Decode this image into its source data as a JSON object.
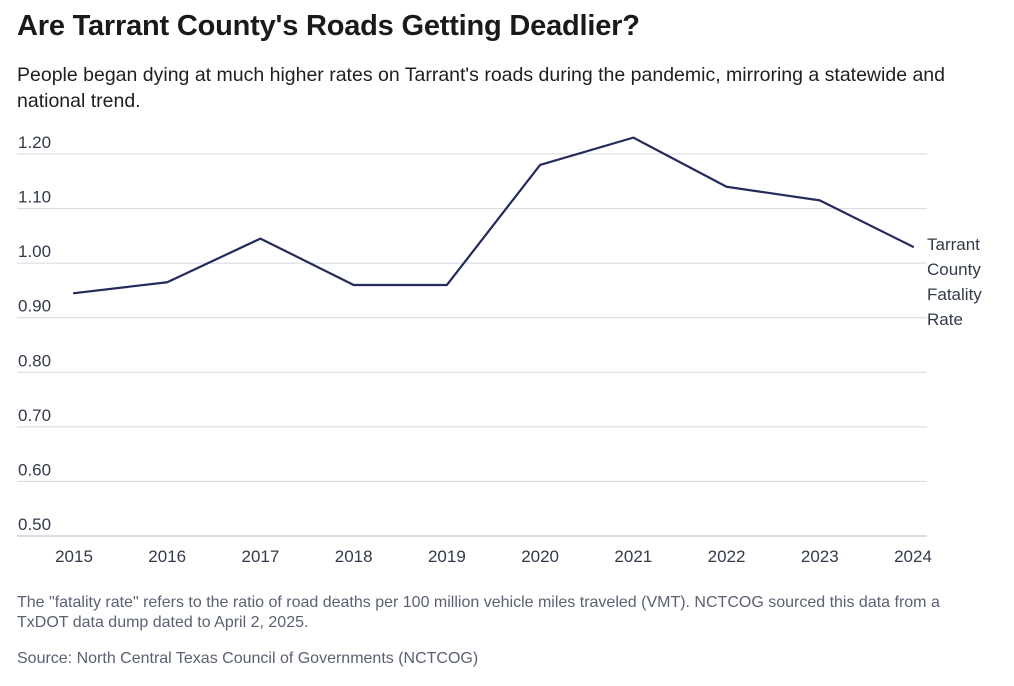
{
  "title": "Are Tarrant County's Roads Getting Deadlier?",
  "subtitle": "People began dying at much higher rates on Tarrant's roads during the pandemic, mirroring a statewide and national trend.",
  "note": "The \"fatality rate\" refers to the ratio of road deaths per 100 million vehicle miles traveled (VMT). NCTCOG sourced this data from a TxDOT data dump dated to April 2, 2025.",
  "source": "Source: North Central Texas Council of Governments (NCTCOG)",
  "colors": {
    "line": "#232a5c",
    "grid": "#d4d8e0",
    "text": "#333a4a"
  },
  "chart_data": {
    "type": "line",
    "title": "Are Tarrant County's Roads Getting Deadlier?",
    "xlabel": "",
    "ylabel": "",
    "ylim": [
      0.5,
      1.2
    ],
    "y_ticks": [
      "0.50",
      "0.60",
      "0.70",
      "0.80",
      "0.90",
      "1.00",
      "1.10",
      "1.20"
    ],
    "grid": true,
    "categories": [
      "2015",
      "2016",
      "2017",
      "2018",
      "2019",
      "2020",
      "2021",
      "2022",
      "2023",
      "2024"
    ],
    "series": [
      {
        "name": "Tarrant County Fatality Rate",
        "label_lines": [
          "Tarrant",
          "County",
          "Fatality",
          "Rate"
        ],
        "values": [
          0.945,
          0.965,
          1.045,
          0.96,
          0.96,
          1.18,
          1.23,
          1.14,
          1.115,
          1.03
        ]
      }
    ]
  }
}
